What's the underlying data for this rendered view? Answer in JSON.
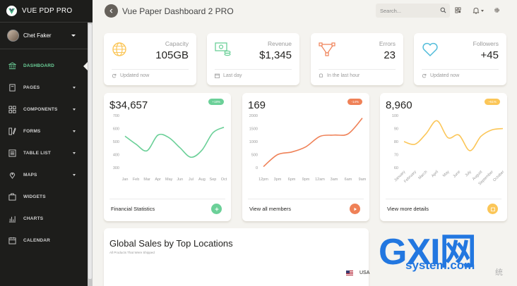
{
  "sidebar": {
    "brand": "VUE PDP PRO",
    "user_name": "Chet Faker",
    "items": [
      {
        "label": "DASHBOARD",
        "icon": "bank-icon",
        "active": true,
        "has_caret": false
      },
      {
        "label": "PAGES",
        "icon": "book-icon",
        "active": false,
        "has_caret": true
      },
      {
        "label": "COMPONENTS",
        "icon": "grid-icon",
        "active": false,
        "has_caret": true
      },
      {
        "label": "FORMS",
        "icon": "pencil-icon",
        "active": false,
        "has_caret": true
      },
      {
        "label": "TABLE LIST",
        "icon": "list-icon",
        "active": false,
        "has_caret": true
      },
      {
        "label": "MAPS",
        "icon": "pin-icon",
        "active": false,
        "has_caret": true
      },
      {
        "label": "WIDGETS",
        "icon": "box-icon",
        "active": false,
        "has_caret": false
      },
      {
        "label": "CHARTS",
        "icon": "chart-icon",
        "active": false,
        "has_caret": false
      },
      {
        "label": "CALENDAR",
        "icon": "calendar-icon",
        "active": false,
        "has_caret": false
      }
    ]
  },
  "header": {
    "title": "Vue Paper Dashboard 2 PRO",
    "search_placeholder": "Search..."
  },
  "stats": [
    {
      "label": "Capacity",
      "value": "105GB",
      "foot": "Updated now",
      "icon": "globe-icon",
      "color": "#fbc658"
    },
    {
      "label": "Revenue",
      "value": "$1,345",
      "foot": "Last day",
      "icon": "money-icon",
      "color": "#6bd098"
    },
    {
      "label": "Errors",
      "value": "23",
      "foot": "In the last hour",
      "icon": "vector-icon",
      "color": "#ef8157"
    },
    {
      "label": "Followers",
      "value": "+45",
      "foot": "Updated now",
      "icon": "heart-icon",
      "color": "#51bcda"
    }
  ],
  "charts": [
    {
      "value": "$34,657",
      "badge": "+18%",
      "footer": "Financial Statistics",
      "color": "#6bd098",
      "chart_data": {
        "type": "line",
        "categories": [
          "Jan",
          "Feb",
          "Mar",
          "Apr",
          "May",
          "Jun",
          "Jul",
          "Aug",
          "Sep",
          "Oct"
        ],
        "values": [
          542,
          480,
          430,
          550,
          530,
          453,
          380,
          434,
          568,
          610
        ],
        "y_ticks": [
          "700",
          "600",
          "500",
          "400",
          "300"
        ],
        "ylim": [
          300,
          700
        ]
      }
    },
    {
      "value": "169",
      "badge": "-14%",
      "footer": "View all members",
      "color": "#ef8157",
      "chart_data": {
        "type": "line",
        "categories": [
          "12pm",
          "3pm",
          "6pm",
          "9pm",
          "12am",
          "3am",
          "6am",
          "9am"
        ],
        "values": [
          40,
          500,
          600,
          800,
          1200,
          1250,
          1300,
          1900
        ],
        "y_ticks": [
          "2000",
          "1500",
          "1000",
          "500",
          "0"
        ],
        "ylim": [
          0,
          2000
        ]
      }
    },
    {
      "value": "8,960",
      "badge": "~51%",
      "footer": "View more details",
      "color": "#fbc658",
      "chart_data": {
        "type": "line",
        "categories": [
          "January",
          "February",
          "March",
          "April",
          "May",
          "June",
          "July",
          "August",
          "September",
          "October"
        ],
        "values": [
          80,
          78,
          86,
          96,
          83,
          85,
          73,
          84,
          89,
          90
        ],
        "y_ticks": [
          "100",
          "90",
          "80",
          "70",
          "60"
        ],
        "ylim": [
          60,
          100
        ]
      }
    }
  ],
  "global_sales": {
    "title": "Global Sales by Top Locations",
    "subtitle": "All Products That Were Shipped",
    "first_row_country": "USA"
  },
  "watermark": {
    "main": "GXI网",
    "sub": "system.com",
    "cn": "统"
  }
}
